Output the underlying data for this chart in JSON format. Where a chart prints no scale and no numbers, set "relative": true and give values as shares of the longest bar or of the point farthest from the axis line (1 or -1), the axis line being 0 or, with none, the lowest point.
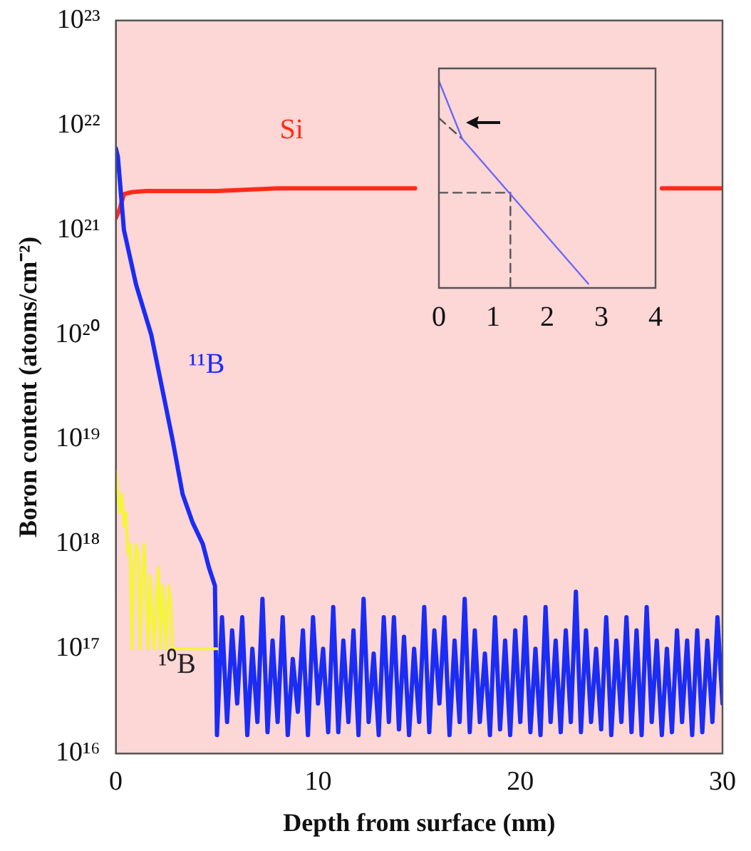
{
  "chart_data": [
    {
      "type": "line",
      "xlabel": "Depth from surface (nm)",
      "ylabel": "Boron content (atoms/cm⁻²)",
      "log": "y",
      "grid": false,
      "legend": false,
      "marker": "none",
      "xlim": [
        0,
        30
      ],
      "xticks": [
        0,
        10,
        20,
        30
      ],
      "ylim": [
        1e+16,
        1e+23
      ],
      "yticks": [
        {
          "value": 1e+16,
          "label": "10¹⁶"
        },
        {
          "value": 1e+17,
          "label": "10¹⁷"
        },
        {
          "value": 1e+18,
          "label": "10¹⁸"
        },
        {
          "value": 1e+19,
          "label": "10¹⁹"
        },
        {
          "value": 1e+20,
          "label": "10²⁰"
        },
        {
          "value": 1e+21,
          "label": "10²¹"
        },
        {
          "value": 1e+22,
          "label": "10²²"
        },
        {
          "value": 1e+23,
          "label": "10²³"
        }
      ],
      "series": [
        {
          "name": "¹⁰B",
          "color": "#f5f53a",
          "x": [
            0,
            0.1,
            0.2,
            0.3,
            0.4,
            0.5,
            0.6,
            0.7,
            0.8,
            0.9,
            1.0,
            1.1,
            1.2,
            1.3,
            1.4,
            1.5,
            1.6,
            1.7,
            1.8,
            1.9,
            2.0,
            2.1,
            2.2,
            2.3,
            2.4,
            2.5,
            2.6,
            2.7,
            2.8,
            2.9,
            3.0,
            3.5,
            4.0,
            4.5,
            5.0
          ],
          "values": [
            5e+18,
            3e+18,
            2e+18,
            3e+18,
            1.5e+18,
            2e+18,
            8e+17,
            1e+18,
            1e+17,
            6e+17,
            1e+18,
            8e+17,
            1e+17,
            5e+17,
            1e+18,
            3e+17,
            1e+17,
            5e+17,
            2e+17,
            1e+17,
            3e+17,
            6e+17,
            1e+17,
            4e+17,
            2e+17,
            1e+17,
            4e+17,
            3e+17,
            1e+17,
            1e+17,
            1e+17,
            1e+17,
            1e+17,
            1e+17,
            1e+17
          ]
        },
        {
          "name": "¹¹B",
          "color": "#1a2cf5",
          "x": [
            0,
            0.1,
            0.4,
            1.0,
            1.75,
            2.3,
            2.8,
            3.3,
            3.8,
            4.3,
            4.6,
            4.9,
            5.0,
            5.25,
            5.5,
            5.75,
            6.0,
            6.25,
            6.5,
            6.75,
            7.0,
            7.25,
            7.5,
            7.75,
            8.0,
            8.25,
            8.5,
            8.75,
            9.0,
            9.25,
            9.5,
            9.75,
            10.0,
            10.25,
            10.5,
            10.75,
            11.0,
            11.25,
            11.5,
            11.75,
            12.0,
            12.25,
            12.5,
            12.75,
            13.0,
            13.25,
            13.5,
            13.75,
            14.0,
            14.25,
            14.5,
            14.75,
            15.0,
            15.25,
            15.5,
            15.75,
            16.0,
            16.25,
            16.5,
            16.75,
            17.0,
            17.25,
            17.5,
            17.75,
            18.0,
            18.25,
            18.5,
            18.75,
            19.0,
            19.25,
            19.5,
            19.75,
            20.0,
            20.25,
            20.5,
            20.75,
            21.0,
            21.25,
            21.5,
            21.75,
            22.0,
            22.25,
            22.5,
            22.75,
            23.0,
            23.25,
            23.5,
            23.75,
            24.0,
            24.25,
            24.5,
            24.75,
            25.0,
            25.25,
            25.5,
            25.75,
            26.0,
            26.25,
            26.5,
            26.75,
            27.0,
            27.25,
            27.5,
            27.75,
            28.0,
            28.25,
            28.5,
            28.75,
            29.0,
            29.25,
            29.5,
            29.75,
            30.0
          ],
          "values": [
            6e+21,
            5e+21,
            1e+21,
            3e+20,
            1e+20,
            3e+19,
            1e+19,
            3e+18,
            1.6e+18,
            1e+18,
            6e+17,
            4e+17,
            1.5e+16,
            2e+17,
            2e+16,
            1.5e+17,
            3e+16,
            2e+17,
            1.5e+16,
            1e+17,
            2e+16,
            3e+17,
            1.6e+16,
            1.2e+17,
            2e+16,
            2e+17,
            1.5e+16,
            8e+16,
            2.5e+16,
            1.5e+17,
            1.5e+16,
            2e+17,
            3e+16,
            1e+17,
            1.6e+16,
            2.5e+17,
            1.6e+16,
            1.2e+17,
            2e+16,
            1.5e+17,
            1.5e+16,
            3e+17,
            2e+16,
            9e+16,
            1.5e+16,
            2e+17,
            2e+16,
            2e+17,
            1.7e+16,
            1.3e+17,
            1.5e+16,
            1e+17,
            2e+16,
            2.5e+17,
            1.6e+16,
            1.5e+17,
            3e+16,
            2e+17,
            1.5e+16,
            1.2e+17,
            2e+16,
            3e+17,
            1.6e+16,
            1.5e+17,
            2e+16,
            9e+16,
            1.5e+16,
            2e+17,
            1.7e+16,
            1.2e+17,
            1.5e+16,
            1.5e+17,
            2e+16,
            2e+17,
            1.6e+16,
            1e+17,
            1.5e+16,
            2.5e+17,
            2e+16,
            1.2e+17,
            1.6e+16,
            1.5e+17,
            2e+16,
            3.5e+17,
            1.6e+16,
            1.5e+17,
            2e+16,
            1e+17,
            1.7e+16,
            2e+17,
            1.5e+16,
            1.2e+17,
            2e+16,
            2e+17,
            1.6e+16,
            1.5e+17,
            1.5e+16,
            2.5e+17,
            2e+16,
            1.2e+17,
            1.5e+16,
            1e+17,
            1.6e+16,
            1.5e+17,
            2e+16,
            1.2e+17,
            1.5e+16,
            1.5e+17,
            1.6e+16,
            1.2e+17,
            2e+16,
            2e+17,
            3e+16
          ]
        },
        {
          "name": "Si",
          "color": "#ff2a1a",
          "x": [
            0,
            0.2,
            0.4,
            0.8,
            1.5,
            3,
            5,
            8,
            10,
            14.8,
            20,
            27,
            30
          ],
          "values": [
            1.3e+21,
            1.6e+21,
            2.2e+21,
            2.3e+21,
            2.35e+21,
            2.35e+21,
            2.35e+21,
            2.5e+21,
            2.5e+21,
            2.5e+21,
            null,
            2.5e+21,
            2.5e+21
          ]
        }
      ]
    },
    {
      "type": "line",
      "relative": true,
      "tick_labels": "x",
      "grid": false,
      "legend": false,
      "marker": "none",
      "xlim": [
        0,
        4
      ],
      "xticks": [
        0,
        1,
        2,
        3,
        4
      ],
      "series": [
        {
          "color": "#6a6af5",
          "x": [
            0,
            0.43,
            2.76
          ],
          "values": [
            1,
            0.72,
            0.02
          ]
        },
        {
          "color": "#555555",
          "line_style": "dashed",
          "x": [
            0,
            0.43
          ],
          "values": [
            0.82,
            0.72
          ]
        },
        {
          "color": "#555555",
          "line_style": "dashed",
          "x": [
            0,
            1.32,
            1.32
          ],
          "values": [
            0.46,
            0.46,
            0
          ]
        }
      ]
    }
  ]
}
